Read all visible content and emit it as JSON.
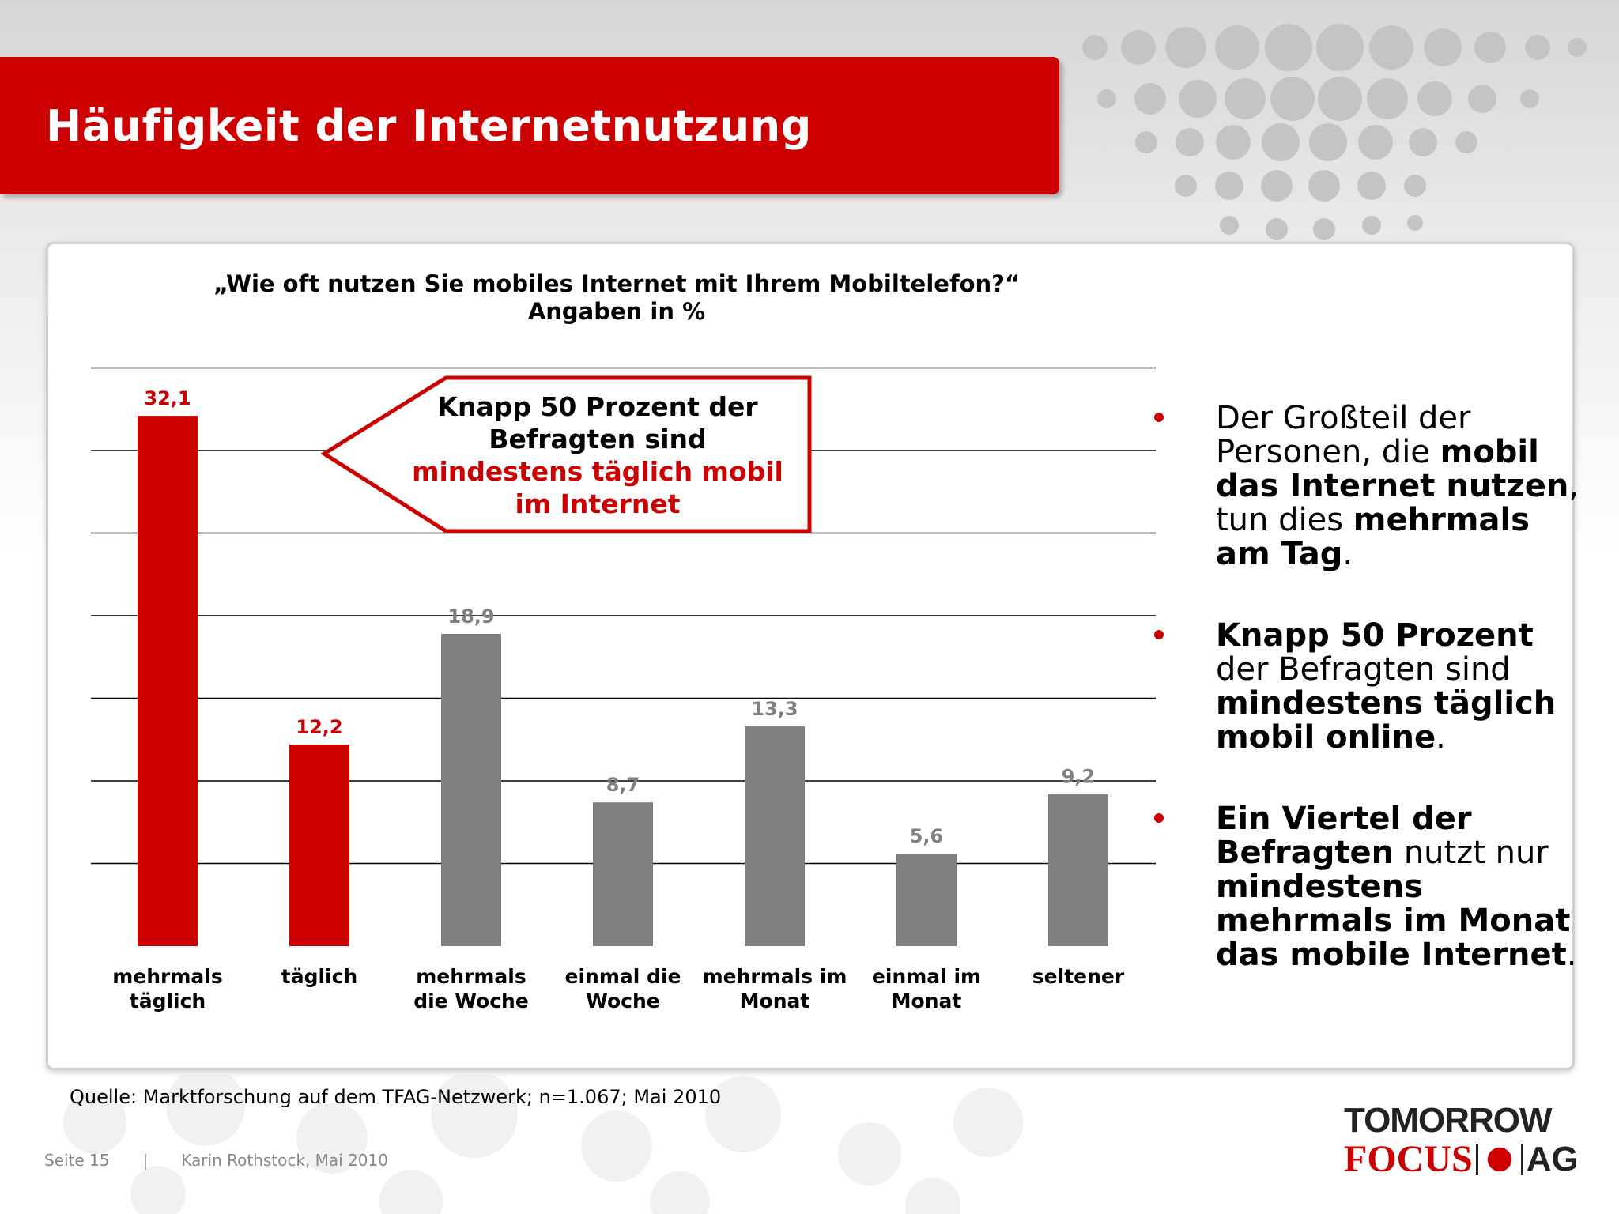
{
  "title": "Häufigkeit der Internetnutzung",
  "question_line1": "„Wie oft nutzen Sie mobiles Internet mit Ihrem Mobiltelefon?“",
  "question_line2": "Angaben in %",
  "callout": {
    "line1": "Knapp 50 Prozent der",
    "line2": "Befragten sind",
    "line3": "mindestens täglich mobil",
    "line4": "im Internet"
  },
  "chart_data": {
    "type": "bar",
    "categories": [
      [
        "mehrmals",
        "täglich"
      ],
      [
        "täglich"
      ],
      [
        "mehrmals",
        "die Woche"
      ],
      [
        "einmal die",
        "Woche"
      ],
      [
        "mehrmals im",
        "Monat"
      ],
      [
        "einmal im",
        "Monat"
      ],
      [
        "seltener"
      ]
    ],
    "values": [
      32.1,
      12.2,
      18.9,
      8.7,
      13.3,
      5.6,
      9.2
    ],
    "value_labels": [
      "32,1",
      "12,2",
      "18,9",
      "8,7",
      "13,3",
      "5,6",
      "9,2"
    ],
    "highlight": [
      true,
      true,
      false,
      false,
      false,
      false,
      false
    ],
    "colors": {
      "highlight": "#cc0000",
      "normal": "#808080"
    },
    "ylim": [
      0,
      35
    ],
    "grid": true
  },
  "bullets": [
    [
      [
        "Der Großteil der Personen, die ",
        false
      ],
      [
        "mobil das Internet nutzen",
        true
      ],
      [
        ", tun dies ",
        false
      ],
      [
        "mehrmals am Tag",
        true
      ],
      [
        ".",
        false
      ]
    ],
    [
      [
        "Knapp 50 Prozent",
        true
      ],
      [
        " der Befragten sind ",
        false
      ],
      [
        "mindestens täglich mobil online",
        true
      ],
      [
        ".",
        false
      ]
    ],
    [
      [
        "Ein Viertel der Befragten",
        true
      ],
      [
        " nutzt nur ",
        false
      ],
      [
        "mindestens mehrmals im Monat das mobile Internet",
        true
      ],
      [
        ".",
        false
      ]
    ]
  ],
  "source": "Quelle: Marktforschung auf dem TFAG-Netzwerk; n=1.067; Mai 2010",
  "footer": {
    "page": "Seite 15",
    "separator": "|",
    "author": "Karin Rothstock, Mai 2010"
  },
  "logo": {
    "line1": "TOMORROW",
    "focus": "FOCUS",
    "ag": "AG"
  }
}
